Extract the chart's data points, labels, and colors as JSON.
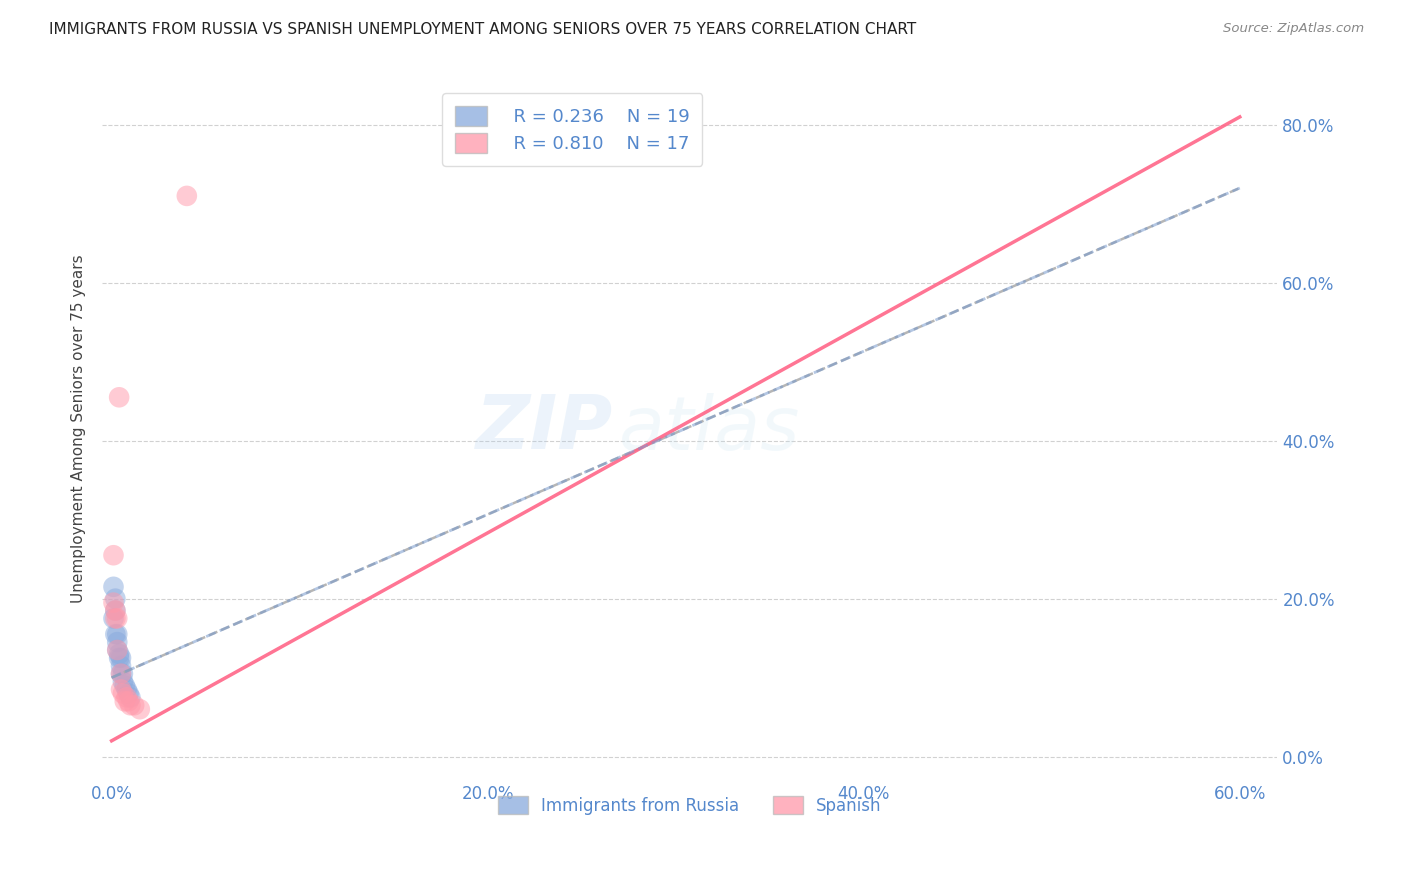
{
  "title": "IMMIGRANTS FROM RUSSIA VS SPANISH UNEMPLOYMENT AMONG SENIORS OVER 75 YEARS CORRELATION CHART",
  "source": "Source: ZipAtlas.com",
  "ylabel_label": "Unemployment Among Seniors over 75 years",
  "xlabel_legend": [
    "Immigrants from Russia",
    "Spanish"
  ],
  "legend_r1": "R = 0.236",
  "legend_n1": "N = 19",
  "legend_r2": "R = 0.810",
  "legend_n2": "N = 17",
  "watermark_zip": "ZIP",
  "watermark_atlas": "atlas",
  "blue_color": "#88AADD",
  "pink_color": "#FF99AA",
  "blue_line_color": "#7799CC",
  "pink_line_color": "#FF6688",
  "axis_label_color": "#5588CC",
  "title_color": "#222222",
  "grid_color": "#CCCCCC",
  "blue_scatter_x": [
    0.001,
    0.001,
    0.002,
    0.002,
    0.002,
    0.003,
    0.003,
    0.003,
    0.004,
    0.004,
    0.005,
    0.005,
    0.005,
    0.006,
    0.006,
    0.007,
    0.008,
    0.009,
    0.01
  ],
  "blue_scatter_y": [
    0.215,
    0.175,
    0.2,
    0.185,
    0.155,
    0.155,
    0.145,
    0.135,
    0.13,
    0.125,
    0.125,
    0.115,
    0.105,
    0.105,
    0.095,
    0.09,
    0.085,
    0.08,
    0.075
  ],
  "pink_scatter_x": [
    0.001,
    0.001,
    0.002,
    0.002,
    0.003,
    0.003,
    0.004,
    0.005,
    0.005,
    0.006,
    0.007,
    0.008,
    0.009,
    0.01,
    0.012,
    0.015,
    0.04
  ],
  "pink_scatter_y": [
    0.255,
    0.195,
    0.185,
    0.175,
    0.175,
    0.135,
    0.455,
    0.105,
    0.085,
    0.08,
    0.07,
    0.075,
    0.07,
    0.065,
    0.065,
    0.06,
    0.71
  ],
  "xlim_min": -0.005,
  "xlim_max": 0.62,
  "ylim_min": -0.03,
  "ylim_max": 0.86,
  "x_ticks": [
    0.0,
    0.2,
    0.4,
    0.6
  ],
  "x_tick_labels": [
    "0.0%",
    "20.0%",
    "40.0%",
    "60.0%"
  ],
  "y_ticks": [
    0.0,
    0.2,
    0.4,
    0.6,
    0.8
  ],
  "y_tick_labels": [
    "0.0%",
    "20.0%",
    "40.0%",
    "60.0%",
    "80.0%"
  ],
  "blue_trend_x": [
    0.0,
    0.6
  ],
  "blue_trend_y": [
    0.1,
    0.72
  ],
  "pink_trend_x": [
    0.0,
    0.6
  ],
  "pink_trend_y": [
    0.02,
    0.81
  ]
}
